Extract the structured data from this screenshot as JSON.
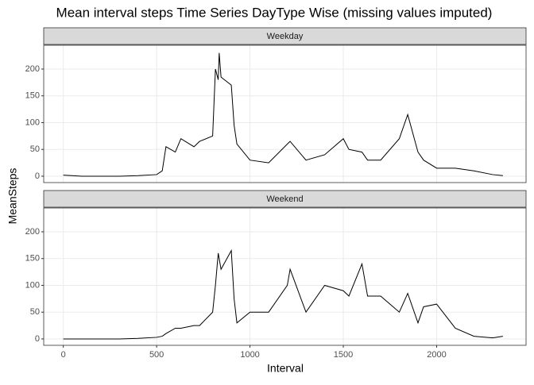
{
  "chart_data": {
    "type": "line",
    "facet": true,
    "title": "Mean interval steps Time Series DayType Wise (missing values imputed)",
    "x_label": "Interval",
    "y_label": "MeanSteps",
    "x": [
      0,
      100,
      200,
      300,
      400,
      500,
      530,
      550,
      600,
      630,
      700,
      730,
      800,
      815,
      830,
      835,
      845,
      900,
      915,
      930,
      1000,
      1100,
      1200,
      1215,
      1300,
      1400,
      1500,
      1530,
      1600,
      1630,
      1700,
      1800,
      1845,
      1900,
      1930,
      2000,
      2100,
      2200,
      2300,
      2355
    ],
    "series": [
      {
        "name": "Weekday",
        "color": "#000000",
        "values": [
          2,
          0,
          0,
          0,
          1,
          3,
          10,
          55,
          45,
          70,
          55,
          65,
          75,
          200,
          180,
          230,
          185,
          170,
          95,
          60,
          30,
          25,
          60,
          65,
          30,
          40,
          70,
          50,
          45,
          30,
          30,
          70,
          115,
          45,
          30,
          15,
          15,
          10,
          3,
          1
        ]
      },
      {
        "name": "Weekend",
        "color": "#000000",
        "values": [
          0,
          0,
          0,
          0,
          1,
          3,
          5,
          10,
          20,
          20,
          25,
          25,
          50,
          100,
          160,
          150,
          130,
          165,
          75,
          30,
          50,
          50,
          100,
          130,
          50,
          100,
          90,
          80,
          140,
          80,
          80,
          50,
          85,
          30,
          60,
          65,
          20,
          5,
          2,
          5
        ]
      }
    ],
    "xlim": [
      -105,
      2479
    ],
    "ylim": [
      -11.9,
      244.4
    ],
    "xticks": [
      0,
      500,
      1000,
      1500,
      2000
    ],
    "yticks": [
      0,
      50,
      100,
      150,
      200
    ],
    "grid": true
  }
}
